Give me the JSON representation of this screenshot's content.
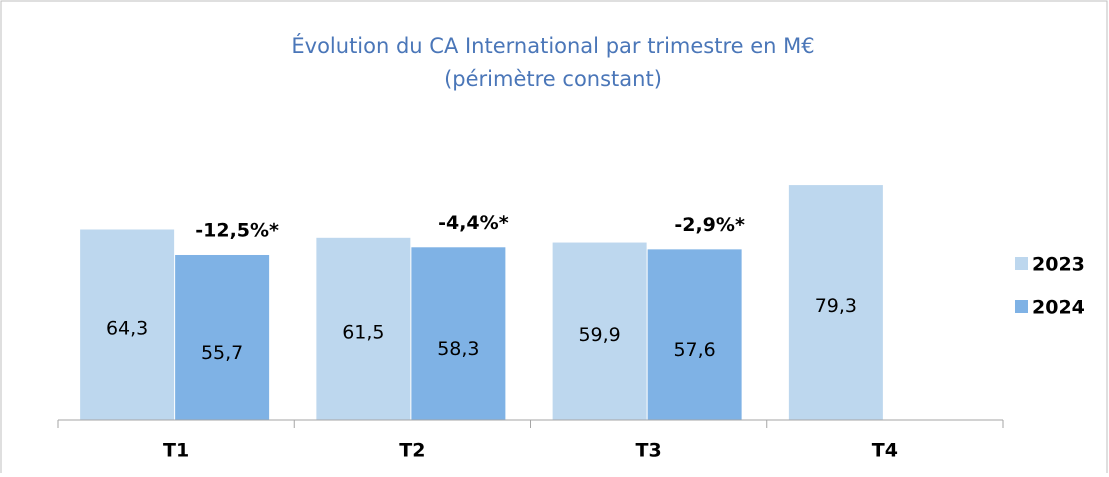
{
  "chart_data": {
    "type": "bar",
    "title": "Évolution du CA International par trimestre en M€",
    "subtitle": "(périmètre constant)",
    "categories": [
      "T1",
      "T2",
      "T3",
      "T4"
    ],
    "series": [
      {
        "name": "2023",
        "color": "#bdd7ee",
        "values": [
          64.3,
          61.5,
          59.9,
          79.3
        ],
        "value_labels": [
          "64,3",
          "61,5",
          "59,9",
          "79,3"
        ]
      },
      {
        "name": "2024",
        "color": "#7fb2e5",
        "values": [
          55.7,
          58.3,
          57.6,
          null
        ],
        "value_labels": [
          "55,7",
          "58,3",
          "57,6",
          null
        ]
      }
    ],
    "annotations": [
      "-12,5%*",
      "-4,4%*",
      "-2,9%*"
    ],
    "ylim": [
      0,
      80
    ],
    "legend": "right"
  }
}
